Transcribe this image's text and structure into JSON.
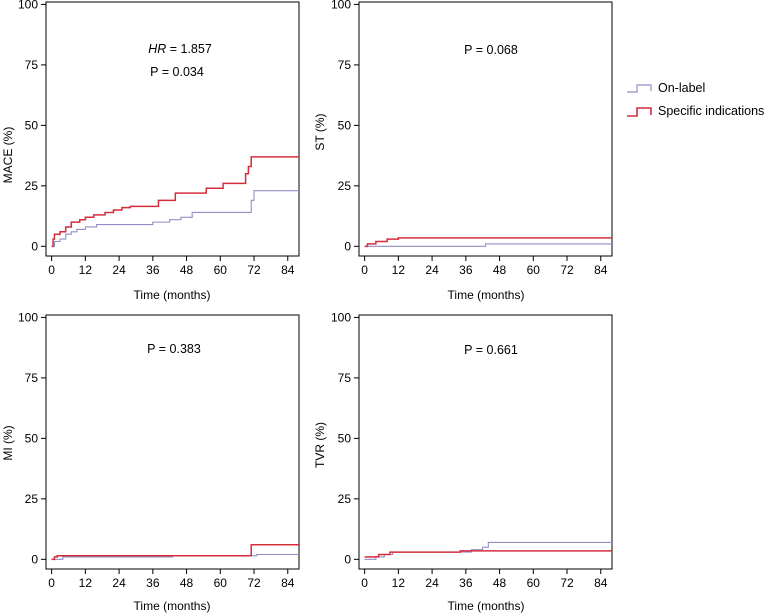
{
  "legend": {
    "placement": "right",
    "items": [
      {
        "label": "On-label",
        "color": "#8f8fc6"
      },
      {
        "label": "Specific indications",
        "color": "#d42e3c"
      }
    ]
  },
  "chart_data": [
    {
      "type": "line",
      "step": true,
      "title": "",
      "xlabel": "Time (months)",
      "ylabel": "MACE (%)",
      "xlim": [
        -2,
        88
      ],
      "ylim": [
        -4,
        101
      ],
      "x_ticks": [
        "0",
        "12",
        "24",
        "36",
        "48",
        "60",
        "72",
        "84"
      ],
      "y_ticks": [
        "0",
        "25",
        "50",
        "75",
        "100"
      ],
      "annotation_hr_label": "HR",
      "annotation_hr_value": " = 1.857",
      "annotation_p": "P = 0.034",
      "series": [
        {
          "name": "On-label",
          "color": "#8f8fc6",
          "points": [
            [
              0,
              0
            ],
            [
              1,
              2
            ],
            [
              3,
              3
            ],
            [
              5,
              5
            ],
            [
              7,
              6
            ],
            [
              9,
              7
            ],
            [
              12,
              8
            ],
            [
              16,
              9
            ],
            [
              32,
              9
            ],
            [
              36,
              10
            ],
            [
              42,
              11
            ],
            [
              46,
              12
            ],
            [
              50,
              14
            ],
            [
              70,
              14
            ],
            [
              71,
              19
            ],
            [
              72,
              23
            ],
            [
              88,
              23
            ]
          ]
        },
        {
          "name": "Specific indications",
          "color": "#d42e3c",
          "points": [
            [
              0,
              0
            ],
            [
              0.5,
              3
            ],
            [
              1,
              5
            ],
            [
              3,
              6
            ],
            [
              5,
              8
            ],
            [
              7,
              10
            ],
            [
              10,
              11
            ],
            [
              12,
              12
            ],
            [
              15,
              13
            ],
            [
              19,
              14
            ],
            [
              22,
              15
            ],
            [
              25,
              16
            ],
            [
              28,
              16.5
            ],
            [
              38,
              19
            ],
            [
              44,
              22
            ],
            [
              55,
              24
            ],
            [
              61,
              26
            ],
            [
              69,
              30
            ],
            [
              70,
              33
            ],
            [
              71,
              37
            ],
            [
              88,
              37
            ]
          ]
        }
      ]
    },
    {
      "type": "line",
      "step": true,
      "title": "",
      "xlabel": "Time (months)",
      "ylabel": "ST (%)",
      "xlim": [
        -2,
        88
      ],
      "ylim": [
        -4,
        101
      ],
      "x_ticks": [
        "0",
        "12",
        "24",
        "36",
        "48",
        "60",
        "72",
        "84"
      ],
      "y_ticks": [
        "0",
        "25",
        "50",
        "75",
        "100"
      ],
      "annotation_p": "P = 0.068",
      "series": [
        {
          "name": "On-label",
          "color": "#8f8fc6",
          "points": [
            [
              0,
              0
            ],
            [
              42,
              0
            ],
            [
              43,
              1
            ],
            [
              88,
              1
            ]
          ]
        },
        {
          "name": "Specific indications",
          "color": "#d42e3c",
          "points": [
            [
              0,
              0
            ],
            [
              1,
              1
            ],
            [
              4,
              2
            ],
            [
              8,
              3
            ],
            [
              12,
              3.5
            ],
            [
              88,
              3.5
            ]
          ]
        }
      ]
    },
    {
      "type": "line",
      "step": true,
      "title": "",
      "xlabel": "Time (months)",
      "ylabel": "MI (%)",
      "xlim": [
        -2,
        88
      ],
      "ylim": [
        -4,
        101
      ],
      "x_ticks": [
        "0",
        "12",
        "24",
        "36",
        "48",
        "60",
        "72",
        "84"
      ],
      "y_ticks": [
        "0",
        "25",
        "50",
        "75",
        "100"
      ],
      "annotation_p": "P = 0.383",
      "series": [
        {
          "name": "On-label",
          "color": "#8f8fc6",
          "points": [
            [
              0,
              0
            ],
            [
              4,
              1
            ],
            [
              42,
              1
            ],
            [
              43,
              1.5
            ],
            [
              72,
              1.5
            ],
            [
              73,
              2
            ],
            [
              88,
              2
            ]
          ]
        },
        {
          "name": "Specific indications",
          "color": "#d42e3c",
          "points": [
            [
              0,
              0
            ],
            [
              1,
              1
            ],
            [
              2,
              1.5
            ],
            [
              70,
              1.5
            ],
            [
              71,
              6
            ],
            [
              88,
              6
            ]
          ]
        }
      ]
    },
    {
      "type": "line",
      "step": true,
      "title": "",
      "xlabel": "Time (months)",
      "ylabel": "TVR (%)",
      "xlim": [
        -2,
        88
      ],
      "ylim": [
        -4,
        101
      ],
      "x_ticks": [
        "0",
        "12",
        "24",
        "36",
        "48",
        "60",
        "72",
        "84"
      ],
      "y_ticks": [
        "0",
        "25",
        "50",
        "75",
        "100"
      ],
      "annotation_p": "P = 0.661",
      "series": [
        {
          "name": "On-label",
          "color": "#8f8fc6",
          "points": [
            [
              0,
              0
            ],
            [
              4,
              1
            ],
            [
              7,
              2
            ],
            [
              10,
              3
            ],
            [
              34,
              3
            ],
            [
              38,
              4
            ],
            [
              42,
              5
            ],
            [
              44,
              7
            ],
            [
              88,
              7
            ]
          ]
        },
        {
          "name": "Specific indications",
          "color": "#d42e3c",
          "points": [
            [
              0,
              1
            ],
            [
              5,
              2
            ],
            [
              9,
              3
            ],
            [
              33,
              3
            ],
            [
              34,
              3.5
            ],
            [
              88,
              3.5
            ]
          ]
        }
      ]
    }
  ]
}
